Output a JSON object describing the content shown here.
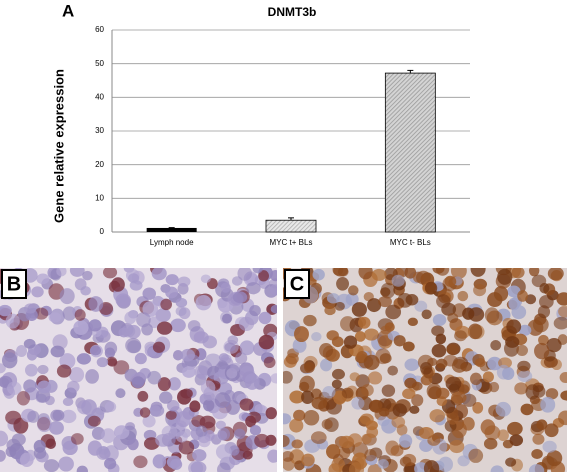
{
  "panel_labels": [
    "A",
    "B",
    "C"
  ],
  "chart_data": {
    "type": "bar",
    "title": "DNMT3b",
    "y_label": "Gene relative expression",
    "categories": [
      "Lymph node",
      "MYC t+ BLs",
      "MYC t- BLs"
    ],
    "values": [
      1.2,
      3.5,
      47.2
    ],
    "errors": [
      0.1,
      0.7,
      0.8
    ],
    "colors": [
      "#000000",
      "#d0d0d0",
      "#a8a8a8"
    ],
    "ylim": [
      0,
      60
    ],
    "yticks": [
      0,
      10,
      20,
      30,
      40,
      50,
      60
    ],
    "grid": true
  }
}
